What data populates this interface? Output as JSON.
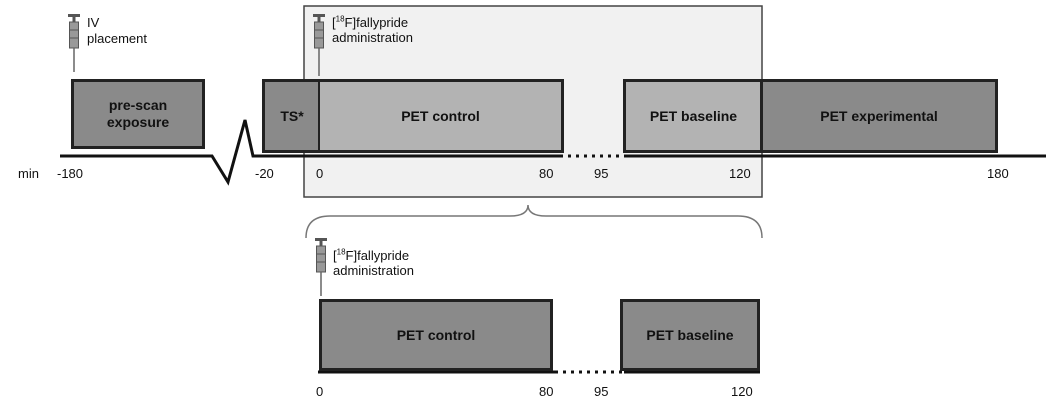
{
  "top": {
    "iv_label": "IV\nplacement",
    "admin_sup": "18",
    "admin_line1": "F]fallypride",
    "admin_line2": "administration",
    "boxes": {
      "prescan": "pre-scan\nexposure",
      "ts": "TS*",
      "control": "PET control",
      "baseline": "PET baseline",
      "experimental": "PET experimental"
    },
    "min_label": "min",
    "ticks": [
      "-180",
      "-20",
      "0",
      "80",
      "95",
      "120",
      "180"
    ]
  },
  "bottom": {
    "admin_sup": "18",
    "admin_line1": "F]fallypride",
    "admin_line2": "administration",
    "boxes": {
      "control": "PET control",
      "baseline": "PET baseline"
    },
    "ticks": [
      "0",
      "80",
      "95",
      "120"
    ]
  },
  "colors": {
    "box_dark": "#8a8a8a",
    "box_light": "#b3b3b3",
    "line": "#111111"
  },
  "icons": [
    "syringe-icon"
  ]
}
